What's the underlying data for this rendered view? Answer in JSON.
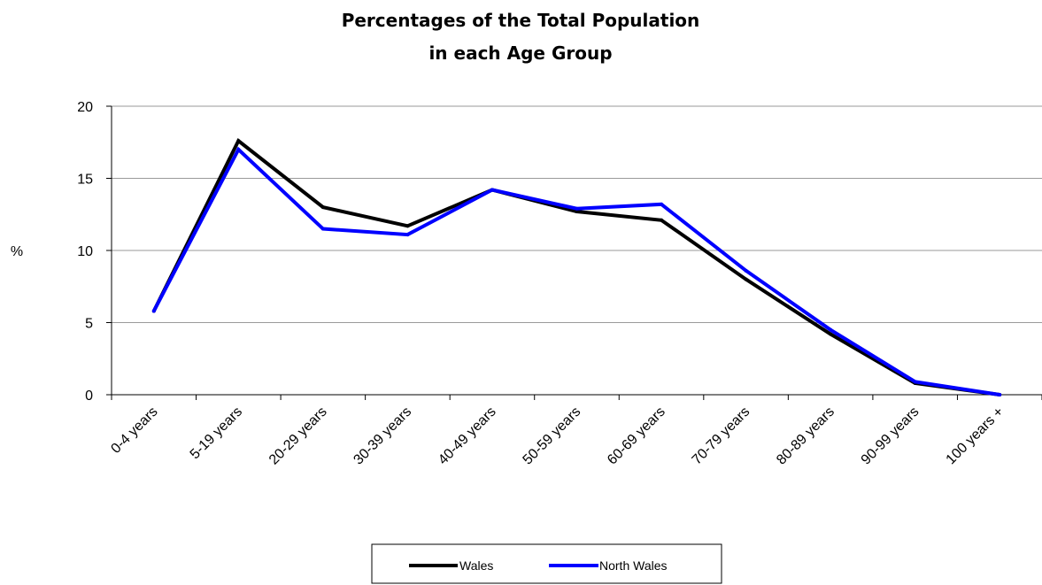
{
  "chart_data": {
    "type": "line",
    "title_lines": [
      "Percentages of the Total Population",
      "in each Age Group"
    ],
    "ylabel": "%",
    "xlabel": "",
    "categories": [
      "0-4 years",
      "5-19 years",
      "20-29 years",
      "30-39 years",
      "40-49 years",
      "50-59 years",
      "60-69 years",
      "70-79 years",
      "80-89 years",
      "90-99 years",
      "100 years +"
    ],
    "ylim": [
      0,
      20
    ],
    "yticks": [
      0,
      5,
      10,
      15,
      20
    ],
    "grid": true,
    "legend_position": "bottom",
    "series": [
      {
        "name": "Wales",
        "color": "#000000",
        "values": [
          5.8,
          17.6,
          13.0,
          11.7,
          14.2,
          12.7,
          12.1,
          8.0,
          4.2,
          0.8,
          0.0
        ]
      },
      {
        "name": "North Wales",
        "color": "#0000ff",
        "values": [
          5.8,
          17.0,
          11.5,
          11.1,
          14.2,
          12.9,
          13.2,
          8.6,
          4.5,
          0.9,
          0.0
        ]
      }
    ]
  }
}
